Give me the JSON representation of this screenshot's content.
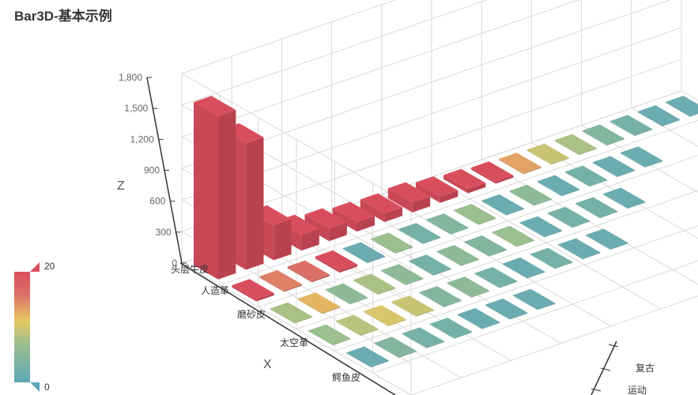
{
  "title": "Bar3D-基本示例",
  "chart_data": {
    "type": "bar",
    "subtype": "bar3d",
    "title": "Bar3D-基本示例",
    "xlabel": "X",
    "ylabel": "",
    "zlabel": "Z",
    "zlim": [
      0,
      1800
    ],
    "z_ticks": [
      "0",
      "300",
      "600",
      "900",
      "1,200",
      "1,500",
      "1,800"
    ],
    "x_tick_labels_visible": [
      "头层牛皮",
      "人造革",
      "磨砂皮",
      "太空革",
      "鳄鱼皮"
    ],
    "y_tick_labels_visible": [
      "复古",
      "运动"
    ],
    "grid": true,
    "visual_map": {
      "min": 0,
      "max": 20,
      "min_label": "0",
      "max_label": "20",
      "colors": [
        "#5ea7b8",
        "#9bbf8f",
        "#e6c862",
        "#dc6f68",
        "#d94e5d"
      ]
    },
    "series": [
      {
        "x_index": [
          0,
          0,
          0,
          0,
          0,
          0,
          0,
          0,
          0,
          0,
          0,
          0,
          0,
          0,
          0,
          0,
          0,
          0,
          1,
          1,
          1,
          1,
          1,
          1,
          1,
          1,
          1,
          1,
          1,
          1,
          1,
          1,
          1,
          2,
          2,
          2,
          2,
          2,
          2,
          2,
          2,
          2,
          2,
          2,
          2,
          2,
          3,
          3,
          3,
          3,
          3,
          3,
          3,
          3,
          3,
          3,
          3,
          4,
          4,
          4,
          4,
          4,
          4,
          4
        ],
        "y_index": [
          0,
          1,
          2,
          3,
          4,
          5,
          6,
          7,
          8,
          9,
          10,
          11,
          12,
          13,
          14,
          15,
          16,
          17,
          0,
          1,
          2,
          3,
          4,
          5,
          6,
          7,
          8,
          9,
          10,
          11,
          12,
          13,
          14,
          0,
          1,
          2,
          3,
          4,
          5,
          6,
          7,
          8,
          9,
          10,
          11,
          12,
          0,
          1,
          2,
          3,
          4,
          5,
          6,
          7,
          8,
          9,
          10,
          0,
          1,
          2,
          3,
          4,
          5,
          6
        ],
        "values": [
          1550,
          1200,
          330,
          150,
          120,
          90,
          80,
          95,
          60,
          40,
          20,
          12,
          8,
          6,
          3,
          2,
          1,
          1,
          20,
          14,
          15,
          20,
          1,
          5,
          2,
          3,
          5,
          1,
          4,
          1,
          2,
          1,
          1,
          6,
          11,
          4,
          6,
          4,
          2,
          4,
          3,
          5,
          1,
          2,
          2,
          1,
          5,
          7,
          9,
          8,
          3,
          4,
          2,
          1,
          2,
          1,
          1,
          1,
          3,
          2,
          2,
          1,
          1,
          1
        ]
      }
    ]
  }
}
